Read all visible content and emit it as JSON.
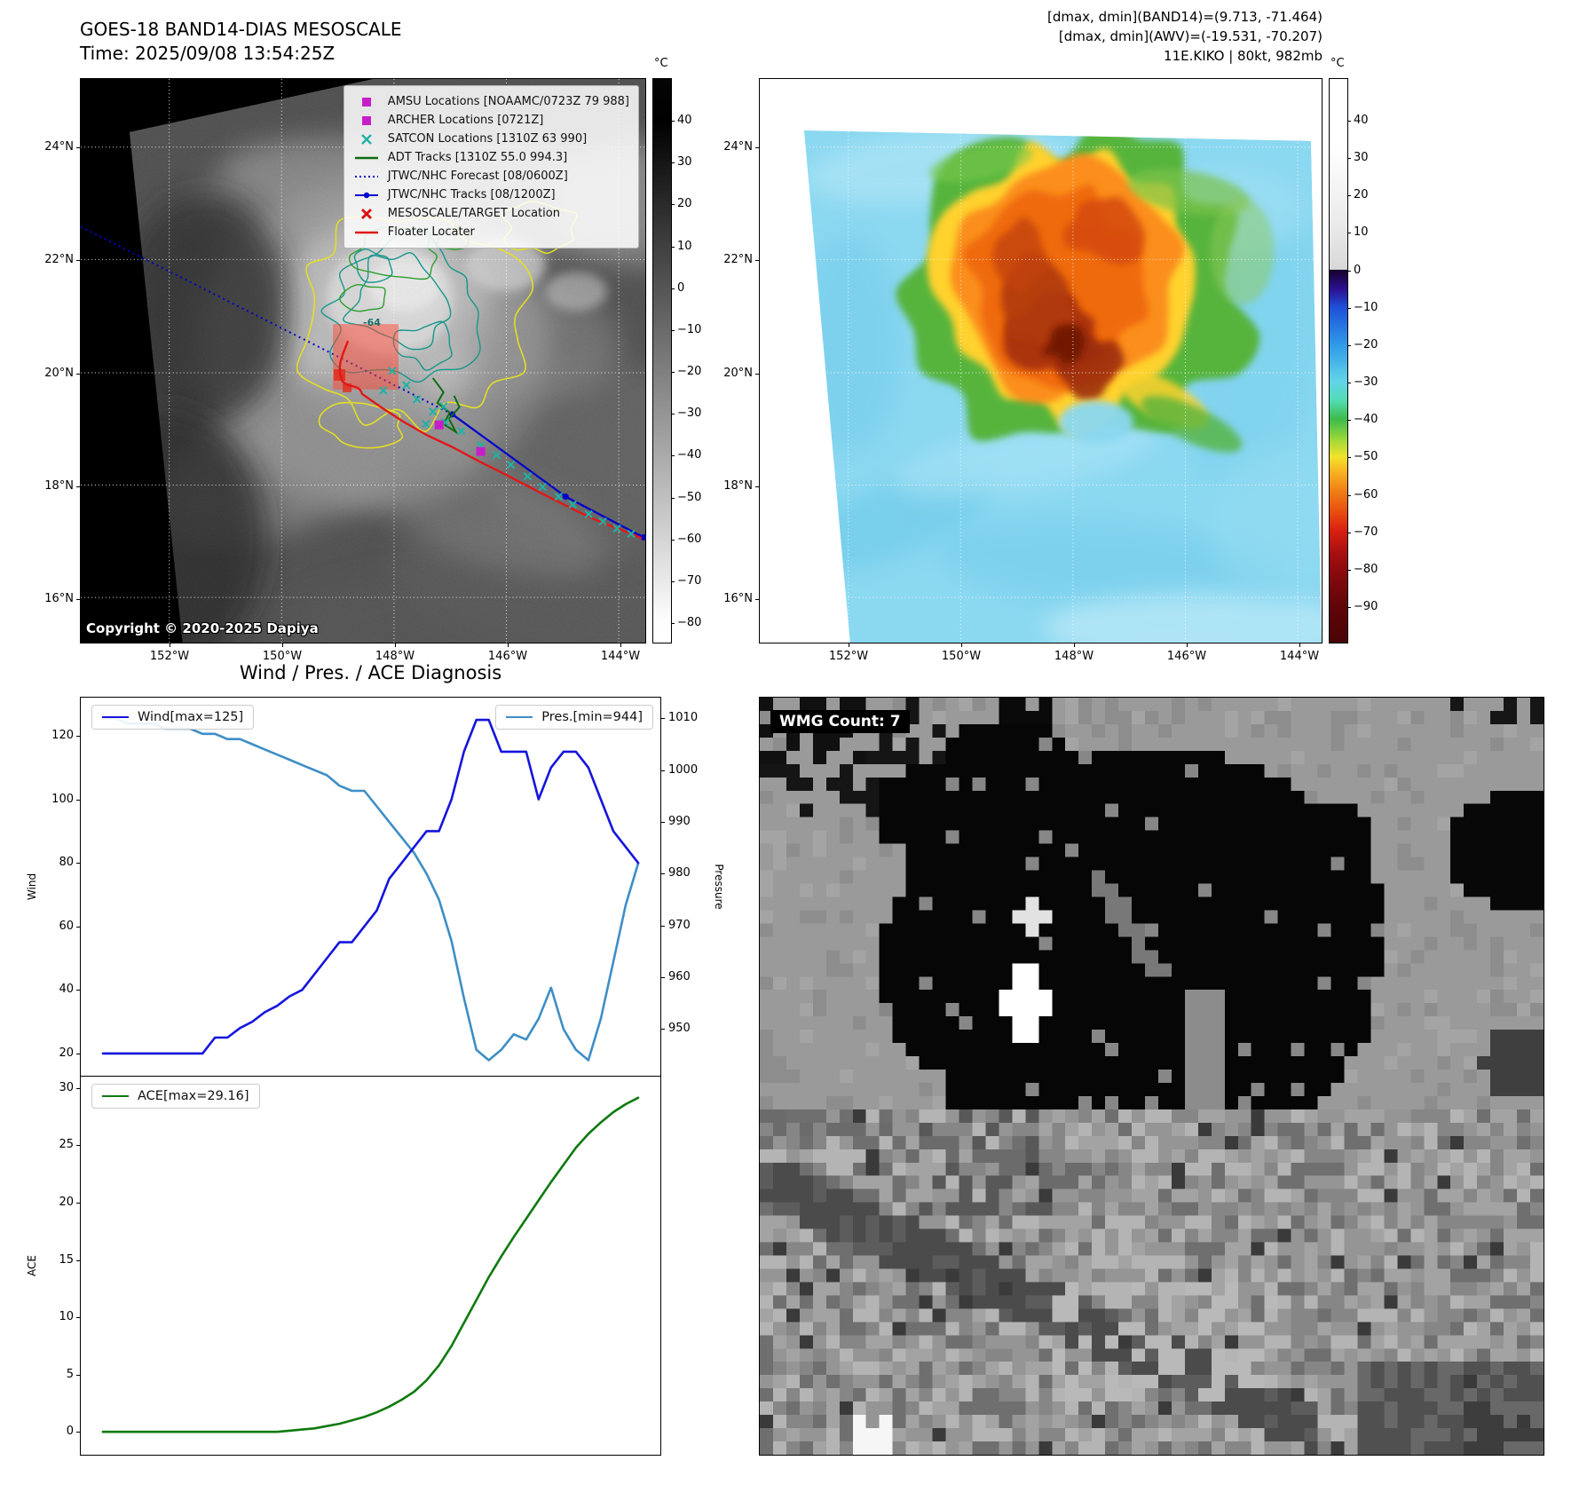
{
  "colors": {
    "wind": "#1515dc",
    "pres": "#3e8ec6",
    "ace": "#0e7a0e",
    "track_blue": "#0000cc",
    "floater_red": "#e01818",
    "adt_green": "#0f6b0f",
    "satcon_teal": "#1fb2a6",
    "amsu_magenta": "#c71fc7",
    "target_red": "#dd1111",
    "contour_yellow": "#e3de26",
    "contour_teal": "#18968c",
    "contour_green": "#2e9e2e",
    "target_box_red": "#ff4633"
  },
  "band14_panel": {
    "title_line1": "GOES-18 BAND14-DIAS MESOSCALE",
    "title_line2": "Time: 2025/09/08 13:54:25Z",
    "copyright": "Copyright © 2020-2025 Dapiya",
    "colorbar_unit": "°C",
    "colorbar_ticks": [
      40,
      30,
      20,
      10,
      0,
      -10,
      -20,
      -30,
      -40,
      -50,
      -60,
      -70,
      -80
    ],
    "lat_ticks": [
      "24°N",
      "22°N",
      "20°N",
      "18°N",
      "16°N"
    ],
    "lon_ticks": [
      "152°W",
      "150°W",
      "148°W",
      "146°W",
      "144°W"
    ],
    "contour_label": "-64",
    "legend": [
      {
        "marker": "square-magenta",
        "label": "AMSU Locations [NOAAMC/0723Z 79 988]"
      },
      {
        "marker": "square-magenta",
        "label": "ARCHER Locations [0721Z]"
      },
      {
        "marker": "x-teal",
        "label": "SATCON Locations [1310Z 63 990]"
      },
      {
        "marker": "line-green",
        "label": "ADT Tracks [1310Z 55.0 994.3]"
      },
      {
        "marker": "line-blue-dotted",
        "label": "JTWC/NHC Forecast [08/0600Z]"
      },
      {
        "marker": "line-blue-dot",
        "label": "JTWC/NHC Tracks [08/1200Z]"
      },
      {
        "marker": "x-red",
        "label": "MESOSCALE/TARGET Location"
      },
      {
        "marker": "line-red",
        "label": "Floater Locater"
      }
    ]
  },
  "awv_panel": {
    "header_line1": "[dmax, dmin](BAND14)=(9.713, -71.464)",
    "header_line2": "[dmax, dmin](AWV)=(-19.531, -70.207)",
    "header_line3": "11E.KIKO | 80kt, 982mb",
    "colorbar_unit": "°C",
    "colorbar_ticks": [
      40,
      30,
      20,
      10,
      0,
      -10,
      -20,
      -30,
      -40,
      -50,
      -60,
      -70,
      -80,
      -90
    ],
    "lat_ticks": [
      "24°N",
      "22°N",
      "20°N",
      "18°N",
      "16°N"
    ],
    "lon_ticks": [
      "152°W",
      "150°W",
      "148°W",
      "146°W",
      "144°W"
    ]
  },
  "wmg_panel": {
    "count_label": "WMG Count: 7"
  },
  "chart_data": [
    {
      "type": "line",
      "title": "Wind / Pres. / ACE Diagnosis",
      "ylabel_left": "Wind",
      "ylabel_right": "Pressure",
      "ylim_left": [
        13,
        132
      ],
      "ylim_right": [
        941,
        1014
      ],
      "yticks_left": [
        20,
        40,
        60,
        80,
        100,
        120
      ],
      "yticks_right": [
        950,
        960,
        970,
        980,
        990,
        1000,
        1010
      ],
      "legend_position": "upper-left / upper-right",
      "grid": false,
      "series": [
        {
          "name": "Wind[max=125]",
          "axis": "left",
          "color_key": "wind",
          "values": [
            20,
            20,
            20,
            20,
            20,
            20,
            20,
            20,
            20,
            25,
            25,
            28,
            30,
            33,
            35,
            38,
            40,
            45,
            50,
            55,
            55,
            60,
            65,
            75,
            80,
            85,
            90,
            90,
            100,
            115,
            125,
            125,
            115,
            115,
            115,
            100,
            110,
            115,
            115,
            110,
            100,
            90,
            85,
            80
          ]
        },
        {
          "name": "Pres.[min=944]",
          "axis": "right",
          "color_key": "pres",
          "values": [
            1010,
            1010,
            1009,
            1009,
            1009,
            1008,
            1008,
            1008,
            1007,
            1007,
            1006,
            1006,
            1005,
            1004,
            1003,
            1002,
            1001,
            1000,
            999,
            997,
            996,
            996,
            993,
            990,
            987,
            984,
            980,
            975,
            967,
            956,
            946,
            944,
            946,
            949,
            948,
            952,
            958,
            950,
            946,
            944,
            952,
            963,
            974,
            982
          ]
        }
      ]
    },
    {
      "type": "line",
      "ylabel": "ACE",
      "ylim": [
        -2,
        31
      ],
      "yticks": [
        0,
        5,
        10,
        15,
        20,
        25,
        30
      ],
      "grid": false,
      "series": [
        {
          "name": "ACE[max=29.16]",
          "color_key": "ace",
          "values": [
            0,
            0,
            0,
            0,
            0,
            0,
            0,
            0,
            0,
            0,
            0,
            0,
            0,
            0,
            0,
            0.1,
            0.2,
            0.3,
            0.5,
            0.7,
            1,
            1.3,
            1.7,
            2.2,
            2.8,
            3.5,
            4.5,
            5.8,
            7.5,
            9.5,
            11.5,
            13.5,
            15.3,
            17,
            18.6,
            20.2,
            21.8,
            23.3,
            24.8,
            26,
            27,
            27.9,
            28.6,
            29.16
          ]
        }
      ]
    }
  ]
}
